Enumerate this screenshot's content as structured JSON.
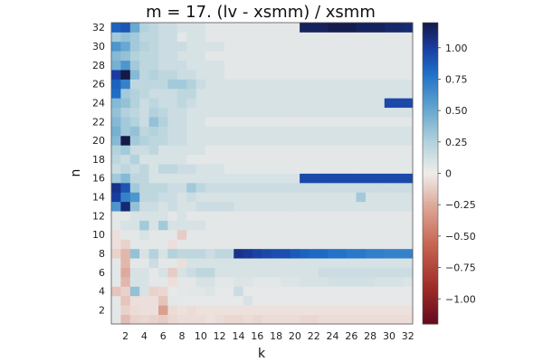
{
  "chart_data": {
    "type": "heatmap",
    "title": "m = 17. (lv - xsmm) / xsmm",
    "xlabel": "k",
    "ylabel": "n",
    "x": [
      1,
      2,
      3,
      4,
      5,
      6,
      7,
      8,
      9,
      10,
      11,
      12,
      13,
      14,
      15,
      16,
      17,
      18,
      19,
      20,
      21,
      22,
      23,
      24,
      25,
      26,
      27,
      28,
      29,
      30,
      31,
      32
    ],
    "y": [
      1,
      2,
      3,
      4,
      5,
      6,
      7,
      8,
      9,
      10,
      11,
      12,
      13,
      14,
      15,
      16,
      17,
      18,
      19,
      20,
      21,
      22,
      23,
      24,
      25,
      26,
      27,
      28,
      29,
      30,
      31,
      32
    ],
    "xticks": [
      2,
      4,
      6,
      8,
      10,
      12,
      14,
      16,
      18,
      20,
      22,
      24,
      26,
      28,
      30,
      32
    ],
    "yticks": [
      2,
      4,
      6,
      8,
      10,
      12,
      14,
      16,
      18,
      20,
      22,
      24,
      26,
      28,
      30,
      32
    ],
    "clim": [
      -1.2,
      1.2
    ],
    "colorbar_ticks": [
      {
        "value": 1.0,
        "label": "1.00"
      },
      {
        "value": 0.75,
        "label": "0.75"
      },
      {
        "value": 0.5,
        "label": "0.50"
      },
      {
        "value": 0.25,
        "label": "0.25"
      },
      {
        "value": 0,
        "label": "0"
      },
      {
        "value": -0.25,
        "label": "−0.25"
      },
      {
        "value": -0.5,
        "label": "−0.50"
      },
      {
        "value": -0.75,
        "label": "−0.75"
      },
      {
        "value": -1.0,
        "label": "−1.00"
      }
    ],
    "z": [
      [
        0.05,
        -0.18,
        -0.1,
        -0.08,
        -0.1,
        -0.12,
        -0.08,
        -0.06,
        -0.06,
        -0.06,
        -0.04,
        -0.06,
        -0.08,
        -0.08,
        -0.06,
        -0.08,
        -0.06,
        -0.06,
        -0.06,
        -0.06,
        -0.08,
        -0.08,
        -0.06,
        -0.06,
        -0.06,
        -0.06,
        -0.06,
        -0.06,
        -0.06,
        -0.06,
        -0.06,
        -0.06
      ],
      [
        0.05,
        -0.1,
        -0.06,
        -0.05,
        -0.05,
        -0.3,
        -0.06,
        -0.04,
        -0.06,
        -0.04,
        -0.04,
        -0.04,
        -0.04,
        -0.04,
        -0.04,
        -0.04,
        -0.04,
        -0.04,
        -0.04,
        -0.04,
        -0.04,
        -0.04,
        -0.04,
        -0.04,
        -0.04,
        -0.04,
        -0.04,
        -0.04,
        -0.04,
        -0.04,
        -0.04,
        -0.04
      ],
      [
        0.05,
        -0.15,
        -0.05,
        -0.05,
        -0.05,
        -0.15,
        0.05,
        0.04,
        0.04,
        0.04,
        0.04,
        0.04,
        0.04,
        0.04,
        0.1,
        0.04,
        0.04,
        0.04,
        0.04,
        0.04,
        0.04,
        0.04,
        0.04,
        0.04,
        0.04,
        0.04,
        0.04,
        0.04,
        0.04,
        0.04,
        0.04,
        0.04
      ],
      [
        -0.15,
        -0.1,
        0.35,
        0.1,
        -0.1,
        -0.08,
        0.04,
        0.05,
        0.06,
        0.06,
        0.08,
        0.04,
        0.04,
        0.15,
        0.04,
        0.04,
        0.04,
        0.04,
        0.04,
        0.04,
        0.04,
        0.04,
        0.04,
        0.04,
        0.04,
        0.04,
        0.04,
        0.04,
        0.04,
        0.04,
        0.04,
        0.04
      ],
      [
        0.05,
        -0.2,
        0.1,
        0.1,
        0.05,
        0.05,
        -0.05,
        0.05,
        0.05,
        0.1,
        0.1,
        0.05,
        0.05,
        0.08,
        0.08,
        0.05,
        0.05,
        0.05,
        0.08,
        0.08,
        0.1,
        0.1,
        0.1,
        0.12,
        0.12,
        0.12,
        0.12,
        0.12,
        0.1,
        0.1,
        0.1,
        0.08
      ],
      [
        0.05,
        -0.25,
        0.1,
        0.1,
        0.05,
        0.1,
        -0.12,
        0.1,
        0.15,
        0.2,
        0.2,
        0.1,
        0.1,
        0.1,
        0.1,
        0.1,
        0.1,
        0.1,
        0.1,
        0.1,
        0.1,
        0.1,
        0.15,
        0.15,
        0.15,
        0.15,
        0.15,
        0.15,
        0.15,
        0.15,
        0.15,
        0.15
      ],
      [
        0.05,
        -0.2,
        0.05,
        0.05,
        0.15,
        0.05,
        0.05,
        -0.05,
        0.1,
        0.1,
        0.1,
        0.1,
        0.1,
        0.1,
        0.1,
        0.1,
        0.1,
        0.1,
        0.1,
        0.1,
        0.1,
        0.1,
        0.1,
        0.1,
        0.1,
        0.1,
        0.1,
        0.1,
        0.1,
        0.1,
        0.1,
        0.1
      ],
      [
        -0.1,
        -0.2,
        0.35,
        0.1,
        0.25,
        0.1,
        0.25,
        0.2,
        0.2,
        0.2,
        0.15,
        0.2,
        0.2,
        1.05,
        1.02,
        0.98,
        0.95,
        0.93,
        0.93,
        0.88,
        0.85,
        0.82,
        0.82,
        0.78,
        0.78,
        0.75,
        0.75,
        0.72,
        0.72,
        0.7,
        0.7,
        0.7
      ],
      [
        -0.05,
        -0.1,
        0.05,
        0.05,
        0.05,
        0.05,
        -0.05,
        0.05,
        0.05,
        0.05,
        0.05,
        0.05,
        0.05,
        0.05,
        0.05,
        0.05,
        0.05,
        0.05,
        0.05,
        0.05,
        0.05,
        0.05,
        0.05,
        0.05,
        0.05,
        0.05,
        0.05,
        0.05,
        0.05,
        0.05,
        0.05,
        0.05
      ],
      [
        -0.05,
        0.05,
        0.05,
        0.1,
        0.05,
        0.05,
        0.05,
        -0.12,
        0.05,
        0.05,
        0.05,
        0.05,
        0.05,
        0.05,
        0.05,
        0.05,
        0.05,
        0.05,
        0.05,
        0.05,
        0.05,
        0.05,
        0.05,
        0.05,
        0.05,
        0.05,
        0.05,
        0.05,
        0.05,
        0.05,
        0.05,
        0.05
      ],
      [
        0.05,
        0.1,
        0.1,
        0.3,
        0.1,
        0.3,
        0.1,
        0.1,
        0.1,
        0.1,
        0.05,
        0.05,
        0.05,
        0.05,
        0.05,
        0.05,
        0.05,
        0.05,
        0.05,
        0.05,
        0.05,
        0.05,
        0.05,
        0.05,
        0.05,
        0.05,
        0.05,
        0.05,
        0.05,
        0.05,
        0.05,
        0.05
      ],
      [
        0.05,
        0.05,
        0.1,
        0.1,
        0.1,
        0.1,
        0.05,
        0.1,
        0.05,
        0.05,
        0.05,
        0.05,
        0.05,
        0.05,
        0.05,
        0.05,
        0.05,
        0.05,
        0.05,
        0.05,
        0.05,
        0.05,
        0.05,
        0.05,
        0.05,
        0.05,
        0.05,
        0.05,
        0.05,
        0.05,
        0.05,
        0.05
      ],
      [
        0.6,
        1.1,
        0.35,
        0.15,
        0.15,
        0.1,
        0.15,
        0.1,
        0.1,
        0.15,
        0.15,
        0.15,
        0.15,
        0.1,
        0.1,
        0.1,
        0.1,
        0.1,
        0.1,
        0.1,
        0.1,
        0.1,
        0.1,
        0.1,
        0.1,
        0.1,
        0.1,
        0.1,
        0.1,
        0.1,
        0.1,
        0.1
      ],
      [
        1.0,
        0.7,
        0.6,
        0.2,
        0.2,
        0.15,
        0.15,
        0.1,
        0.15,
        0.1,
        0.1,
        0.1,
        0.1,
        0.1,
        0.1,
        0.1,
        0.1,
        0.1,
        0.1,
        0.1,
        0.1,
        0.1,
        0.1,
        0.1,
        0.1,
        0.1,
        0.3,
        0.1,
        0.1,
        0.1,
        0.1,
        0.1
      ],
      [
        1.05,
        0.9,
        0.3,
        0.2,
        0.2,
        0.2,
        0.15,
        0.15,
        0.3,
        0.2,
        0.15,
        0.15,
        0.15,
        0.15,
        0.15,
        0.15,
        0.15,
        0.15,
        0.15,
        0.15,
        0.15,
        0.15,
        0.15,
        0.15,
        0.15,
        0.15,
        0.15,
        0.15,
        0.15,
        0.15,
        0.15,
        0.15
      ],
      [
        0.3,
        0.4,
        0.2,
        0.2,
        0.1,
        0.1,
        0.1,
        0.1,
        0.1,
        0.1,
        0.1,
        0.1,
        0.1,
        0.1,
        0.1,
        0.1,
        0.1,
        0.1,
        0.1,
        0.1,
        0.95,
        0.95,
        0.95,
        0.95,
        0.95,
        0.95,
        0.95,
        0.95,
        0.95,
        0.95,
        0.95,
        0.95
      ],
      [
        0.15,
        0.2,
        0.15,
        0.2,
        0.1,
        0.2,
        0.2,
        0.15,
        0.15,
        0.1,
        0.1,
        0.1,
        0.05,
        0.05,
        0.05,
        0.05,
        0.05,
        0.05,
        0.05,
        0.05,
        0.05,
        0.05,
        0.05,
        0.05,
        0.05,
        0.05,
        0.05,
        0.05,
        0.05,
        0.05,
        0.05,
        0.05
      ],
      [
        0.2,
        0.15,
        0.25,
        0.1,
        0.1,
        0.1,
        0.1,
        0.1,
        0.05,
        0.05,
        0.05,
        0.05,
        0.05,
        0.05,
        0.05,
        0.05,
        0.05,
        0.05,
        0.05,
        0.05,
        0.05,
        0.05,
        0.05,
        0.05,
        0.05,
        0.05,
        0.05,
        0.05,
        0.05,
        0.05,
        0.05,
        0.05
      ],
      [
        0.25,
        0.3,
        0.15,
        0.15,
        0.2,
        0.1,
        0.1,
        0.1,
        0.1,
        0.1,
        0.05,
        0.05,
        0.05,
        0.05,
        0.05,
        0.05,
        0.05,
        0.05,
        0.05,
        0.05,
        0.05,
        0.05,
        0.05,
        0.05,
        0.05,
        0.05,
        0.05,
        0.05,
        0.05,
        0.05,
        0.05,
        0.05
      ],
      [
        0.4,
        1.2,
        0.3,
        0.25,
        0.2,
        0.2,
        0.15,
        0.15,
        0.1,
        0.1,
        0.1,
        0.1,
        0.1,
        0.1,
        0.1,
        0.1,
        0.1,
        0.1,
        0.1,
        0.1,
        0.1,
        0.1,
        0.1,
        0.1,
        0.1,
        0.1,
        0.1,
        0.1,
        0.1,
        0.1,
        0.1,
        0.1
      ],
      [
        0.45,
        0.3,
        0.35,
        0.2,
        0.25,
        0.2,
        0.15,
        0.15,
        0.1,
        0.1,
        0.1,
        0.1,
        0.1,
        0.1,
        0.1,
        0.1,
        0.1,
        0.1,
        0.1,
        0.1,
        0.1,
        0.1,
        0.1,
        0.1,
        0.1,
        0.1,
        0.1,
        0.1,
        0.1,
        0.1,
        0.1,
        0.1
      ],
      [
        0.4,
        0.3,
        0.25,
        0.15,
        0.35,
        0.25,
        0.15,
        0.15,
        0.1,
        0.1,
        0.05,
        0.05,
        0.05,
        0.05,
        0.05,
        0.05,
        0.05,
        0.05,
        0.05,
        0.05,
        0.05,
        0.05,
        0.05,
        0.05,
        0.05,
        0.05,
        0.05,
        0.05,
        0.05,
        0.05,
        0.05,
        0.05
      ],
      [
        0.35,
        0.25,
        0.2,
        0.15,
        0.25,
        0.2,
        0.15,
        0.15,
        0.1,
        0.1,
        0.1,
        0.1,
        0.1,
        0.1,
        0.1,
        0.1,
        0.1,
        0.1,
        0.1,
        0.1,
        0.1,
        0.1,
        0.1,
        0.1,
        0.1,
        0.1,
        0.1,
        0.1,
        0.1,
        0.1,
        0.1,
        0.1
      ],
      [
        0.4,
        0.35,
        0.25,
        0.15,
        0.2,
        0.15,
        0.15,
        0.2,
        0.15,
        0.1,
        0.1,
        0.1,
        0.1,
        0.1,
        0.1,
        0.1,
        0.1,
        0.1,
        0.1,
        0.1,
        0.1,
        0.1,
        0.1,
        0.1,
        0.1,
        0.1,
        0.1,
        0.1,
        0.1,
        0.95,
        0.95,
        0.95
      ],
      [
        0.8,
        0.3,
        0.25,
        0.2,
        0.15,
        0.15,
        0.15,
        0.2,
        0.2,
        0.1,
        0.1,
        0.1,
        0.1,
        0.1,
        0.1,
        0.1,
        0.1,
        0.1,
        0.1,
        0.1,
        0.1,
        0.1,
        0.1,
        0.1,
        0.1,
        0.1,
        0.1,
        0.1,
        0.1,
        0.1,
        0.1,
        0.1
      ],
      [
        0.85,
        0.7,
        0.2,
        0.2,
        0.2,
        0.2,
        0.3,
        0.3,
        0.25,
        0.15,
        0.1,
        0.1,
        0.1,
        0.1,
        0.1,
        0.1,
        0.1,
        0.1,
        0.1,
        0.1,
        0.1,
        0.1,
        0.1,
        0.1,
        0.1,
        0.1,
        0.1,
        0.1,
        0.1,
        0.1,
        0.1,
        0.1
      ],
      [
        1.0,
        1.2,
        0.4,
        0.2,
        0.25,
        0.2,
        0.2,
        0.15,
        0.15,
        0.1,
        0.1,
        0.1,
        0.05,
        0.05,
        0.05,
        0.05,
        0.05,
        0.05,
        0.05,
        0.05,
        0.05,
        0.05,
        0.05,
        0.05,
        0.05,
        0.05,
        0.05,
        0.05,
        0.05,
        0.05,
        0.05,
        0.05
      ],
      [
        0.45,
        0.6,
        0.3,
        0.2,
        0.2,
        0.15,
        0.15,
        0.15,
        0.1,
        0.1,
        0.1,
        0.1,
        0.05,
        0.05,
        0.05,
        0.05,
        0.05,
        0.05,
        0.05,
        0.05,
        0.05,
        0.05,
        0.05,
        0.05,
        0.05,
        0.05,
        0.05,
        0.05,
        0.05,
        0.05,
        0.05,
        0.05
      ],
      [
        0.4,
        0.35,
        0.25,
        0.2,
        0.2,
        0.15,
        0.15,
        0.1,
        0.1,
        0.1,
        0.05,
        0.05,
        0.05,
        0.05,
        0.05,
        0.05,
        0.05,
        0.05,
        0.05,
        0.05,
        0.05,
        0.05,
        0.05,
        0.05,
        0.05,
        0.05,
        0.05,
        0.05,
        0.05,
        0.05,
        0.05,
        0.05
      ],
      [
        0.6,
        0.5,
        0.3,
        0.25,
        0.2,
        0.15,
        0.15,
        0.15,
        0.1,
        0.1,
        0.1,
        0.1,
        0.05,
        0.05,
        0.05,
        0.05,
        0.05,
        0.05,
        0.05,
        0.05,
        0.05,
        0.05,
        0.05,
        0.05,
        0.05,
        0.05,
        0.05,
        0.05,
        0.05,
        0.05,
        0.05,
        0.05
      ],
      [
        0.3,
        0.35,
        0.3,
        0.2,
        0.2,
        0.15,
        0.15,
        0.05,
        0.1,
        0.1,
        0.05,
        0.05,
        0.05,
        0.05,
        0.05,
        0.05,
        0.05,
        0.05,
        0.05,
        0.05,
        0.05,
        0.05,
        0.05,
        0.05,
        0.05,
        0.05,
        0.05,
        0.05,
        0.05,
        0.05,
        0.05,
        0.05
      ],
      [
        0.85,
        0.9,
        0.5,
        0.25,
        0.2,
        0.15,
        0.15,
        0.1,
        0.1,
        0.1,
        0.05,
        0.05,
        0.05,
        0.05,
        0.05,
        0.05,
        0.05,
        0.05,
        0.05,
        0.05,
        1.15,
        1.15,
        1.15,
        1.18,
        1.18,
        1.18,
        1.15,
        1.15,
        1.15,
        1.12,
        1.12,
        1.1
      ]
    ]
  }
}
